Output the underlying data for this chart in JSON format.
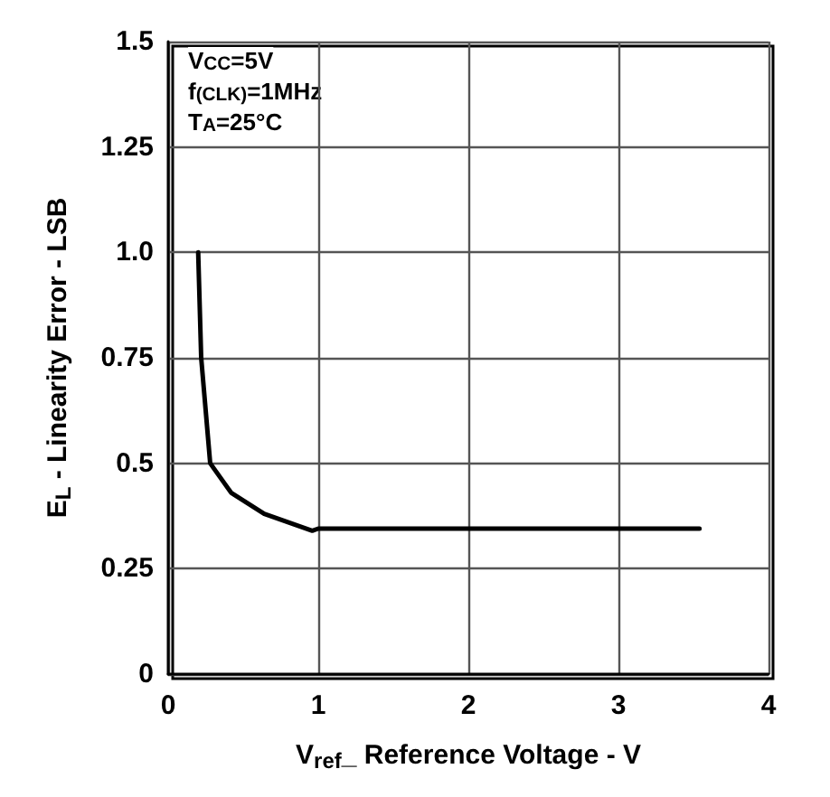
{
  "chart_data": {
    "type": "line",
    "xlabel": "V$_{ref}$_ Reference Voltage - V",
    "ylabel": "E$_{L}$ - Linearity Error - LSB",
    "annotations": [
      "V$_{CC}$=5V",
      "f$_{(CLK)}$=1MHz",
      "T$_{A}$=25°C"
    ],
    "series": [
      {
        "color": "#000000",
        "x": [
          0.2,
          0.22,
          0.28,
          0.3,
          0.42,
          0.64,
          0.96,
          1.0,
          3.54
        ],
        "values": [
          1.0,
          0.75,
          0.5,
          0.49,
          0.43,
          0.38,
          0.34,
          0.345,
          0.345
        ]
      }
    ],
    "xlim": [
      0,
      4
    ],
    "xticks": [
      0,
      1,
      2,
      3,
      4
    ],
    "ylim": [
      0,
      1.5
    ],
    "yticks": [
      0,
      0.25,
      0.5,
      0.75,
      {
        "value": 1.0,
        "label": "1.0"
      },
      1.25,
      1.5
    ],
    "grid": true,
    "marker": "none",
    "line_style": "solid"
  }
}
